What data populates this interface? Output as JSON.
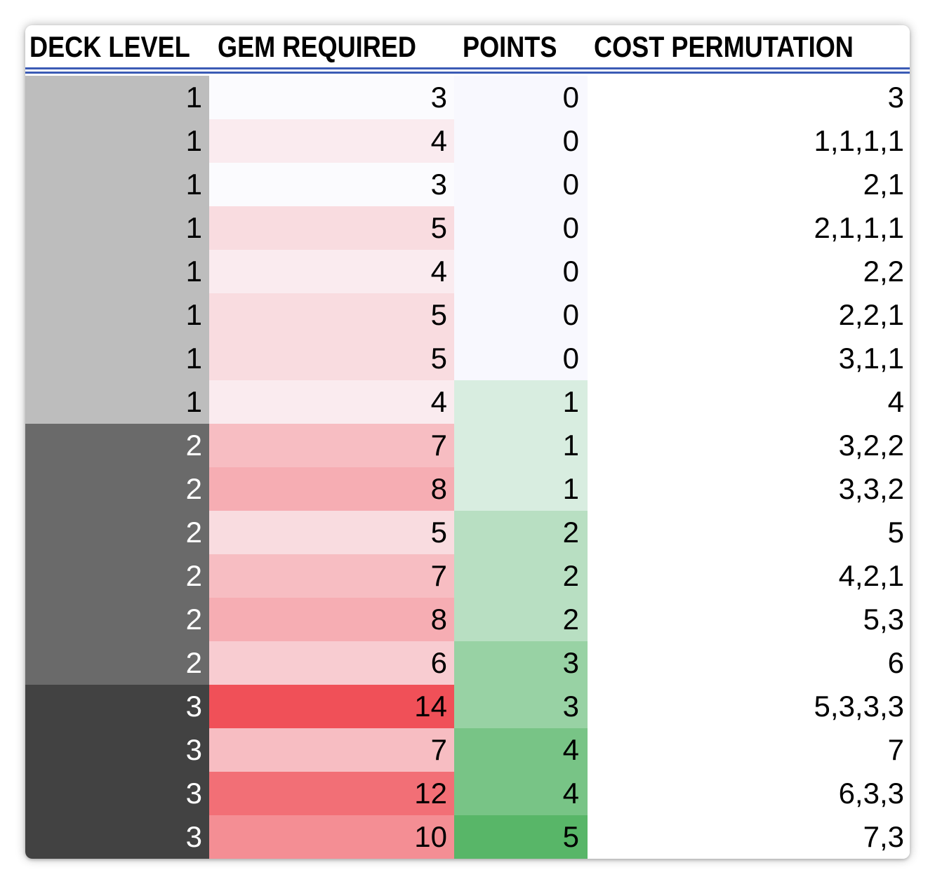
{
  "columns": {
    "deck_level": "DECK LEVEL",
    "gem_required": "GEM REQUIRED",
    "points": "POINTS",
    "cost_permutation": "COST PERMUTATION"
  },
  "colors": {
    "header_rule": "#3b5bb5",
    "points_zero_fill": "#f8f8fe",
    "deck_level_1": "#bdbdbd",
    "deck_level_2": "#6a6a6a",
    "deck_level_3": "#424242",
    "gem_low": "#fbfbfe",
    "gem_high": "#f05058",
    "points_low": "#d8ede0",
    "points_high": "#58b668"
  },
  "rows": [
    {
      "deck_level": "1",
      "gem_required": "3",
      "points": "0",
      "cost_permutation": "3"
    },
    {
      "deck_level": "1",
      "gem_required": "4",
      "points": "0",
      "cost_permutation": "1,1,1,1"
    },
    {
      "deck_level": "1",
      "gem_required": "3",
      "points": "0",
      "cost_permutation": "2,1"
    },
    {
      "deck_level": "1",
      "gem_required": "5",
      "points": "0",
      "cost_permutation": "2,1,1,1"
    },
    {
      "deck_level": "1",
      "gem_required": "4",
      "points": "0",
      "cost_permutation": "2,2"
    },
    {
      "deck_level": "1",
      "gem_required": "5",
      "points": "0",
      "cost_permutation": "2,2,1"
    },
    {
      "deck_level": "1",
      "gem_required": "5",
      "points": "0",
      "cost_permutation": "3,1,1"
    },
    {
      "deck_level": "1",
      "gem_required": "4",
      "points": "1",
      "cost_permutation": "4"
    },
    {
      "deck_level": "2",
      "gem_required": "7",
      "points": "1",
      "cost_permutation": "3,2,2"
    },
    {
      "deck_level": "2",
      "gem_required": "8",
      "points": "1",
      "cost_permutation": "3,3,2"
    },
    {
      "deck_level": "2",
      "gem_required": "5",
      "points": "2",
      "cost_permutation": "5"
    },
    {
      "deck_level": "2",
      "gem_required": "7",
      "points": "2",
      "cost_permutation": "4,2,1"
    },
    {
      "deck_level": "2",
      "gem_required": "8",
      "points": "2",
      "cost_permutation": "5,3"
    },
    {
      "deck_level": "2",
      "gem_required": "6",
      "points": "3",
      "cost_permutation": "6"
    },
    {
      "deck_level": "3",
      "gem_required": "14",
      "points": "3",
      "cost_permutation": "5,3,3,3"
    },
    {
      "deck_level": "3",
      "gem_required": "7",
      "points": "4",
      "cost_permutation": "7"
    },
    {
      "deck_level": "3",
      "gem_required": "12",
      "points": "4",
      "cost_permutation": "6,3,3"
    },
    {
      "deck_level": "3",
      "gem_required": "10",
      "points": "5",
      "cost_permutation": "7,3"
    }
  ]
}
